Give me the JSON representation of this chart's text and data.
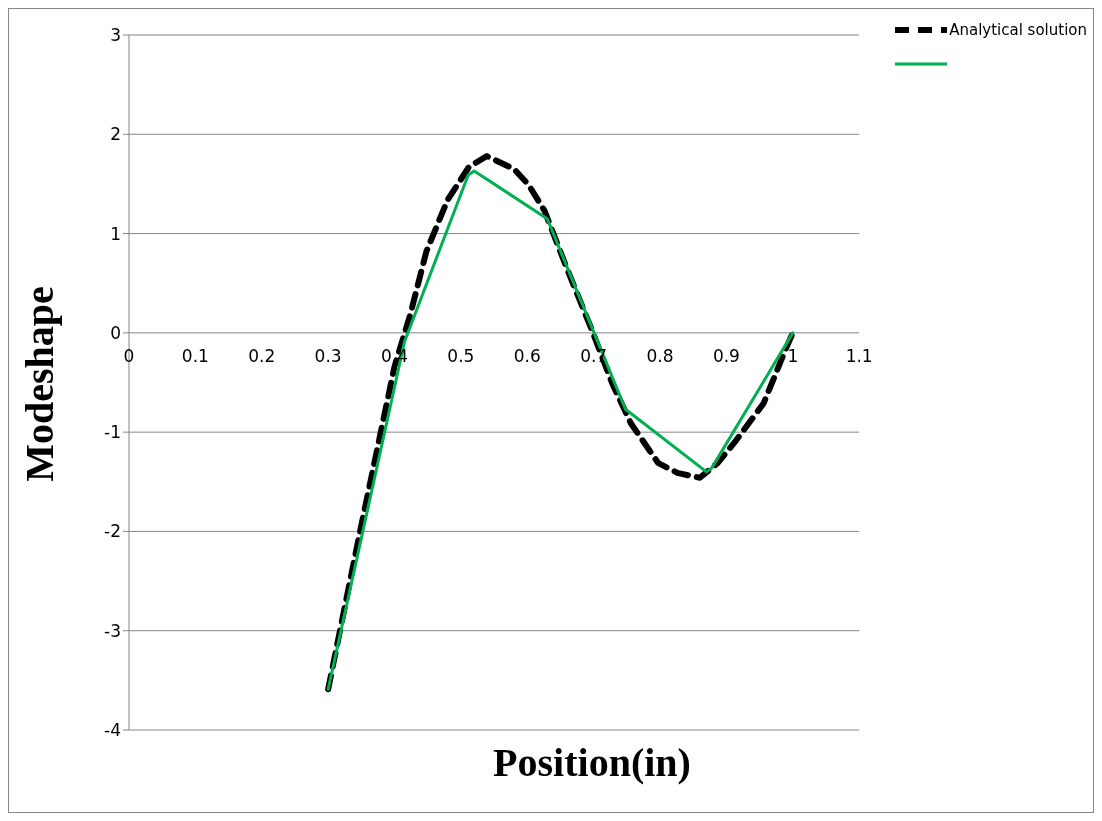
{
  "chart_data": {
    "type": "line",
    "xlabel": "Position(in)",
    "ylabel": "Modeshape",
    "xlim": [
      0,
      1.1
    ],
    "xticks": [
      0,
      0.1,
      0.2,
      0.3,
      0.4,
      0.5,
      0.6,
      0.7,
      0.8,
      0.9,
      1,
      1.1
    ],
    "ylim": [
      -4,
      3
    ],
    "yticks": [
      -4,
      -3,
      -2,
      -1,
      0,
      1,
      2,
      3
    ],
    "grid": "y",
    "legend": "top right",
    "marker": "none",
    "series": [
      {
        "name": "Analytical solution",
        "color": "#000000",
        "line_style": "dashed",
        "x": [
          0.3,
          0.349,
          0.4,
          0.424,
          0.448,
          0.48,
          0.512,
          0.539,
          0.58,
          0.602,
          0.626,
          0.659,
          0.699,
          0.728,
          0.756,
          0.797,
          0.826,
          0.86,
          0.887,
          0.915,
          0.956,
          0.989,
          1
        ],
        "values": [
          -3.59,
          -1.97,
          -0.34,
          0.19,
          0.82,
          1.34,
          1.67,
          1.78,
          1.65,
          1.49,
          1.23,
          0.66,
          0,
          -0.51,
          -0.91,
          -1.31,
          -1.41,
          -1.46,
          -1.31,
          -1.08,
          -0.71,
          -0.17,
          0
        ]
      },
      {
        "color": "#00b050",
        "line_style": "solid",
        "x": [
          0.3,
          0.415,
          0.511,
          0.52,
          0.63,
          0.748,
          0.87,
          0.878,
          1
        ],
        "values": [
          -3.59,
          -0.09,
          1.59,
          1.63,
          1.15,
          -0.77,
          -1.4,
          -1.36,
          0
        ]
      }
    ]
  }
}
